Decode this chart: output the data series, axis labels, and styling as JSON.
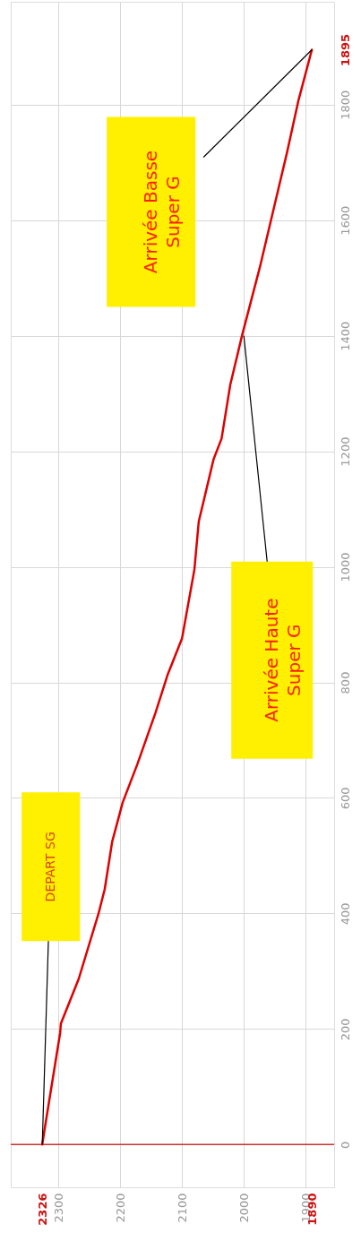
{
  "chart_data": {
    "type": "line",
    "x": [
      2326,
      2322,
      2297,
      2296,
      2267,
      2235,
      2225,
      2213,
      2196,
      2172,
      2143,
      2123,
      2100,
      2080,
      2073,
      2049,
      2036,
      2022,
      2003,
      1974,
      1955,
      1930,
      1912,
      1890
    ],
    "series": [
      {
        "color": "#e00000",
        "values": [
          0,
          28,
          194,
          209,
          287,
          400,
          442,
          524,
          592,
          659,
          747,
          814,
          876,
          995,
          1078,
          1186,
          1222,
          1315,
          1400,
          1519,
          1605,
          1718,
          1806,
          1895
        ]
      }
    ],
    "xlim": [
      2377,
      1854
    ],
    "xticks": [
      2326,
      2300,
      2200,
      2100,
      2000,
      1900,
      1890
    ],
    "ylim": [
      -74,
      1978
    ],
    "yticks": [
      0,
      200,
      400,
      600,
      800,
      1000,
      1200,
      1400,
      1600,
      1800,
      1895
    ],
    "grid": true,
    "legend": false,
    "marker": "none",
    "line_style": "solid",
    "ref_lines": [
      {
        "axis": "y",
        "value": 0,
        "color": "#cc3333"
      }
    ],
    "annotations": [
      {
        "text": "DEPART SG",
        "x": 2326,
        "y": 0
      },
      {
        "text": "Arrivée Haute\nSuper G",
        "x": 2000,
        "y": 1400
      },
      {
        "text": "Arrivée Basse\nSuper G",
        "x": 1890,
        "y": 1895
      }
    ]
  }
}
